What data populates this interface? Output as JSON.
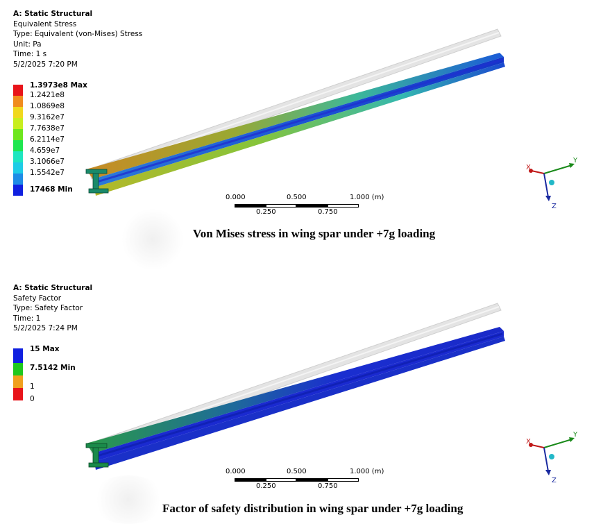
{
  "panels": [
    {
      "analysis": "A: Static Structural",
      "result": "Equivalent Stress",
      "type": "Type: Equivalent (von-Mises) Stress",
      "unit": "Unit: Pa",
      "time": "Time: 1 s",
      "date": "5/2/2025 7:20 PM",
      "legend": [
        {
          "label": "1.3973e8 Max",
          "color": "#e8141a",
          "bold": true
        },
        {
          "label": "1.2421e8",
          "color": "#f08c1e"
        },
        {
          "label": "1.0869e8",
          "color": "#f0d81e"
        },
        {
          "label": "9.3162e7",
          "color": "#c8ee1e"
        },
        {
          "label": "7.7638e7",
          "color": "#6ee61e"
        },
        {
          "label": "6.2114e7",
          "color": "#1ee650"
        },
        {
          "label": "4.659e7",
          "color": "#1ee6c0"
        },
        {
          "label": "3.1066e7",
          "color": "#1ecce6"
        },
        {
          "label": "1.5542e7",
          "color": "#1e8ce6"
        },
        {
          "label": "17468 Min",
          "color": "#1020e0",
          "bold": true
        }
      ],
      "caption": "Von Mises stress in wing spar under +7g loading"
    },
    {
      "analysis": "A: Static Structural",
      "result": "Safety Factor",
      "type": "Type: Safety Factor",
      "time": "Time: 1",
      "date": "5/2/2025 7:24 PM",
      "legend": [
        {
          "label": "15 Max",
          "color": "#1020e0",
          "bold": true
        },
        {
          "label": "7.5142 Min",
          "color": "#1ec81e",
          "bold": true
        },
        {
          "label": "1",
          "color": "#f0a01e"
        },
        {
          "label": "0",
          "color": "#e8141a"
        }
      ],
      "caption": "Factor of safety distribution in wing spar under +7g loading"
    }
  ],
  "scale": {
    "top_labels": [
      "0.000",
      "0.500",
      "1.000 (m)"
    ],
    "bottom_labels": [
      "0.250",
      "0.750"
    ]
  },
  "triad": {
    "x": "X",
    "y": "Y",
    "z": "Z"
  }
}
